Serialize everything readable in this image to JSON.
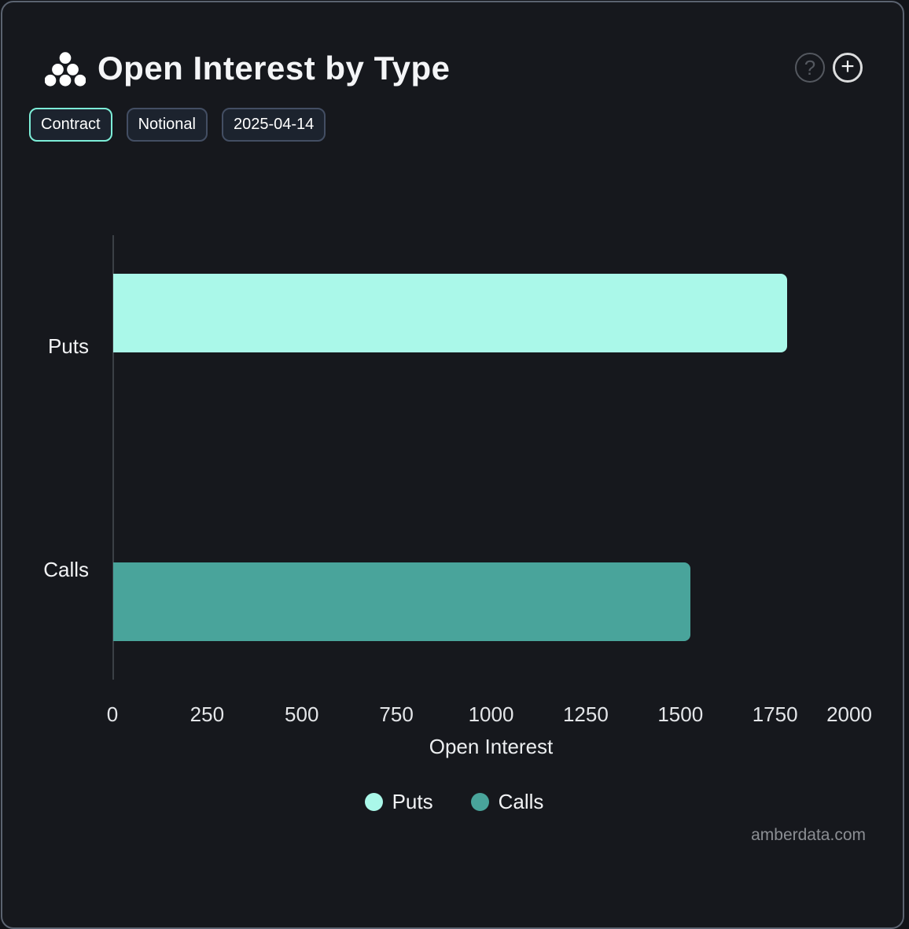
{
  "header": {
    "title": "Open Interest by Type",
    "help_glyph": "?",
    "add_glyph": "+"
  },
  "toolbar": {
    "buttons": [
      {
        "label": "Contract",
        "active": true
      },
      {
        "label": "Notional",
        "active": false
      },
      {
        "label": "2025-04-14",
        "active": false
      }
    ]
  },
  "chart_data": {
    "type": "bar",
    "orientation": "horizontal",
    "title": "Open Interest by Type",
    "categories": [
      "Puts",
      "Calls"
    ],
    "series": [
      {
        "name": "Puts",
        "value": 1780,
        "color": "#aaf8e9"
      },
      {
        "name": "Calls",
        "value": 1525,
        "color": "#49a49b"
      }
    ],
    "xlabel": "Open Interest",
    "ylabel": "",
    "xlim": [
      0,
      2000
    ],
    "xticks": [
      0,
      250,
      500,
      750,
      1000,
      1250,
      1500,
      1750,
      2000
    ],
    "grid": false,
    "legend_position": "bottom"
  },
  "watermark": "amberdata.com",
  "colors": {
    "puts": "#aaf8e9",
    "calls": "#49a49b",
    "active_chip_border": "#7deed8",
    "card_background": "#16181d",
    "card_border": "#5b6370"
  }
}
